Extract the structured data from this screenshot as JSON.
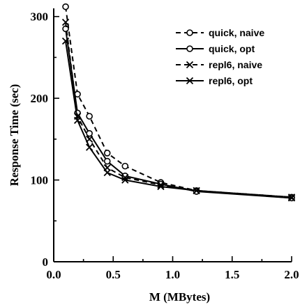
{
  "chart_data": {
    "type": "line",
    "xlabel": "M (MBytes)",
    "ylabel": "Response Time (sec)",
    "xlim": [
      0.0,
      2.0
    ],
    "ylim": [
      0,
      310
    ],
    "x_ticks": [
      {
        "value": 0.0,
        "label": "0.0"
      },
      {
        "value": 0.5,
        "label": "0.5"
      },
      {
        "value": 1.0,
        "label": "1.0"
      },
      {
        "value": 1.5,
        "label": "1.5"
      },
      {
        "value": 2.0,
        "label": "2.0"
      }
    ],
    "y_ticks": [
      {
        "value": 0,
        "label": "0"
      },
      {
        "value": 100,
        "label": "100"
      },
      {
        "value": 200,
        "label": "200"
      },
      {
        "value": 300,
        "label": "300"
      }
    ],
    "grid": false,
    "legend_position": "top-right",
    "series": [
      {
        "name": "quick, naive",
        "line_style": "dashed",
        "marker": "circle",
        "x": [
          0.1,
          0.2,
          0.3,
          0.45,
          0.6,
          0.9,
          1.2,
          2.0
        ],
        "y": [
          312,
          205,
          178,
          133,
          117,
          97,
          87,
          79
        ]
      },
      {
        "name": "quick, opt",
        "line_style": "solid",
        "marker": "circle",
        "x": [
          0.1,
          0.2,
          0.3,
          0.45,
          0.6,
          0.9,
          1.2,
          2.0
        ],
        "y": [
          285,
          182,
          157,
          123,
          105,
          95,
          86,
          78
        ]
      },
      {
        "name": "repl6, naive",
        "line_style": "dashed",
        "marker": "x",
        "x": [
          0.1,
          0.2,
          0.3,
          0.45,
          0.6,
          0.9,
          1.2,
          2.0
        ],
        "y": [
          293,
          178,
          150,
          115,
          103,
          94,
          87,
          79
        ]
      },
      {
        "name": "repl6, opt",
        "line_style": "solid",
        "marker": "x",
        "x": [
          0.1,
          0.2,
          0.3,
          0.45,
          0.6,
          0.9,
          1.2,
          2.0
        ],
        "y": [
          270,
          173,
          140,
          109,
          100,
          92,
          87,
          78
        ]
      }
    ]
  }
}
